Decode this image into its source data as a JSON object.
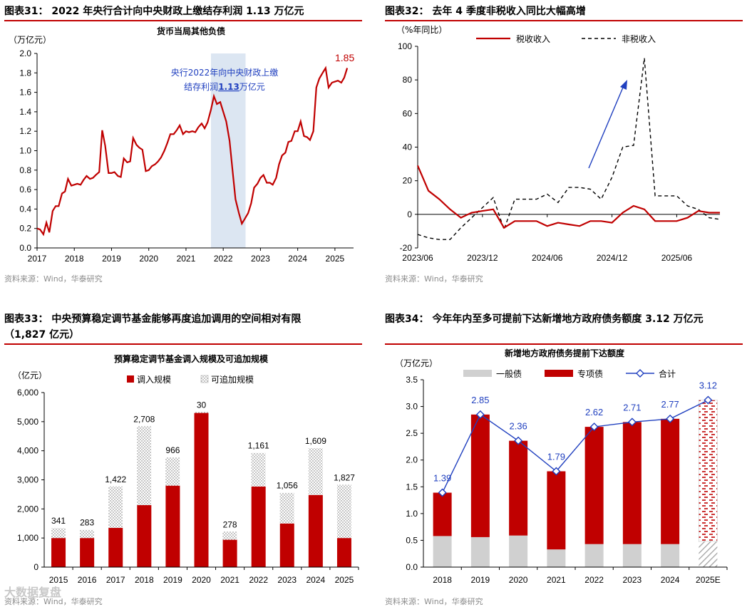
{
  "fig31": {
    "title": "图表31：  2022 年央行合计向中央财政上缴结存利润 1.13 万亿元",
    "source": "资料来源：Wind，华泰研究",
    "chart_data": {
      "type": "line",
      "title": "货币当局其他负债",
      "ylabel": "（万亿元）",
      "ylim": [
        0,
        2.0
      ],
      "yticks": [
        "0.0",
        "0.2",
        "0.4",
        "0.6",
        "0.8",
        "1.0",
        "1.2",
        "1.4",
        "1.6",
        "1.8",
        "2.0"
      ],
      "xticks": [
        "2017",
        "2018",
        "2019",
        "2020",
        "2021",
        "2022",
        "2023",
        "2024",
        "2025"
      ],
      "x_start": 2017.0,
      "x_end": 2025.5,
      "end_label": "1.85",
      "annotation_line1": "央行2022年向中央财政上缴",
      "annotation_line2_pre": "结存利润",
      "annotation_value": "1.13",
      "annotation_line2_post": "万亿元",
      "shade": [
        2021.67,
        2022.6
      ],
      "color": "#c00000",
      "shade_color": "#dce6f2",
      "annot_color": "#1f3fbf",
      "series": [
        [
          2017.0,
          0.2
        ],
        [
          2017.08,
          0.19
        ],
        [
          2017.17,
          0.14
        ],
        [
          2017.25,
          0.26
        ],
        [
          2017.33,
          0.16
        ],
        [
          2017.42,
          0.38
        ],
        [
          2017.5,
          0.43
        ],
        [
          2017.58,
          0.43
        ],
        [
          2017.67,
          0.56
        ],
        [
          2017.75,
          0.58
        ],
        [
          2017.83,
          0.71
        ],
        [
          2017.92,
          0.64
        ],
        [
          2018.0,
          0.65
        ],
        [
          2018.08,
          0.66
        ],
        [
          2018.17,
          0.65
        ],
        [
          2018.25,
          0.7
        ],
        [
          2018.33,
          0.74
        ],
        [
          2018.42,
          0.71
        ],
        [
          2018.5,
          0.72
        ],
        [
          2018.58,
          0.75
        ],
        [
          2018.67,
          0.78
        ],
        [
          2018.75,
          1.21
        ],
        [
          2018.83,
          1.05
        ],
        [
          2018.92,
          0.77
        ],
        [
          2019.0,
          0.77
        ],
        [
          2019.08,
          0.78
        ],
        [
          2019.17,
          0.74
        ],
        [
          2019.25,
          0.73
        ],
        [
          2019.33,
          0.92
        ],
        [
          2019.42,
          0.88
        ],
        [
          2019.5,
          0.89
        ],
        [
          2019.58,
          1.13
        ],
        [
          2019.67,
          1.06
        ],
        [
          2019.75,
          1.03
        ],
        [
          2019.83,
          1.01
        ],
        [
          2019.92,
          0.79
        ],
        [
          2020.0,
          0.8
        ],
        [
          2020.08,
          0.84
        ],
        [
          2020.17,
          0.86
        ],
        [
          2020.25,
          0.89
        ],
        [
          2020.33,
          0.93
        ],
        [
          2020.42,
          1.0
        ],
        [
          2020.5,
          1.08
        ],
        [
          2020.58,
          1.17
        ],
        [
          2020.67,
          1.17
        ],
        [
          2020.75,
          1.21
        ],
        [
          2020.83,
          1.26
        ],
        [
          2020.92,
          1.17
        ],
        [
          2021.0,
          1.2
        ],
        [
          2021.08,
          1.19
        ],
        [
          2021.17,
          1.2
        ],
        [
          2021.25,
          1.19
        ],
        [
          2021.33,
          1.24
        ],
        [
          2021.42,
          1.28
        ],
        [
          2021.5,
          1.23
        ],
        [
          2021.58,
          1.29
        ],
        [
          2021.67,
          1.42
        ],
        [
          2021.75,
          1.56
        ],
        [
          2021.83,
          1.48
        ],
        [
          2021.92,
          1.5
        ],
        [
          2022.0,
          1.4
        ],
        [
          2022.08,
          1.3
        ],
        [
          2022.17,
          1.1
        ],
        [
          2022.25,
          0.8
        ],
        [
          2022.33,
          0.5
        ],
        [
          2022.42,
          0.36
        ],
        [
          2022.5,
          0.25
        ],
        [
          2022.58,
          0.3
        ],
        [
          2022.67,
          0.36
        ],
        [
          2022.75,
          0.46
        ],
        [
          2022.83,
          0.62
        ],
        [
          2022.92,
          0.66
        ],
        [
          2023.0,
          0.72
        ],
        [
          2023.08,
          0.75
        ],
        [
          2023.17,
          0.67
        ],
        [
          2023.25,
          0.67
        ],
        [
          2023.33,
          0.65
        ],
        [
          2023.42,
          0.72
        ],
        [
          2023.5,
          0.86
        ],
        [
          2023.58,
          0.95
        ],
        [
          2023.67,
          0.98
        ],
        [
          2023.75,
          1.09
        ],
        [
          2023.83,
          1.1
        ],
        [
          2023.92,
          1.2
        ],
        [
          2024.0,
          1.2
        ],
        [
          2024.08,
          1.3
        ],
        [
          2024.17,
          1.15
        ],
        [
          2024.25,
          1.14
        ],
        [
          2024.33,
          1.11
        ],
        [
          2024.42,
          1.2
        ],
        [
          2024.5,
          1.65
        ],
        [
          2024.58,
          1.74
        ],
        [
          2024.67,
          1.8
        ],
        [
          2024.75,
          1.85
        ],
        [
          2024.83,
          1.65
        ],
        [
          2024.92,
          1.7
        ],
        [
          2025.0,
          1.71
        ],
        [
          2025.08,
          1.72
        ],
        [
          2025.17,
          1.7
        ],
        [
          2025.25,
          1.75
        ],
        [
          2025.33,
          1.85
        ]
      ]
    }
  },
  "fig32": {
    "title": "图表32：  去年 4 季度非税收入同比大幅高增",
    "source": "资料来源：Wind，华泰研究",
    "chart_data": {
      "type": "line",
      "ylabel": "（%年同比）",
      "ylim": [
        -20,
        100
      ],
      "yticks": [
        "-20",
        "0",
        "20",
        "40",
        "60",
        "80",
        "100"
      ],
      "xticks": [
        "2023/06",
        "2023/12",
        "2024/06",
        "2024/12",
        "2025/06"
      ],
      "xtick_index": [
        0,
        6,
        12,
        18,
        24
      ],
      "legend": [
        "税收收入",
        "非税收入"
      ],
      "colors": [
        "#c00000",
        "#000000"
      ],
      "arrow_color": "#1f3fbf",
      "series": [
        {
          "name": "税收收入",
          "values": [
            29,
            14,
            9,
            3,
            -2,
            1,
            2,
            3,
            -8,
            -4,
            -4,
            -4,
            -7,
            -5,
            -6,
            -7,
            -4,
            -4,
            -5,
            1,
            5,
            3,
            -4,
            -4,
            -4,
            -2,
            2,
            1,
            1
          ]
        },
        {
          "name": "非税收入",
          "values": [
            -12,
            -14,
            -15,
            -15,
            -8,
            -2,
            4,
            10,
            -9,
            9,
            9,
            9,
            12,
            7,
            16,
            16,
            15,
            9,
            22,
            40,
            41,
            93,
            11,
            11,
            11,
            5,
            3,
            -2,
            -3
          ]
        }
      ]
    }
  },
  "fig33": {
    "title": "图表33：  中央预算稳定调节基金能够再度追加调用的空间相对有限",
    "title_cont": "（1,827 亿元）",
    "source": "资料来源：Wind，华泰研究",
    "chart_data": {
      "type": "bar",
      "title": "预算稳定调节基金调入规模及可追加规模",
      "ylabel": "（亿元）",
      "ylim": [
        0,
        6000
      ],
      "yticks": [
        "0",
        "1,000",
        "2,000",
        "3,000",
        "4,000",
        "5,000",
        "6,000"
      ],
      "categories": [
        "2015",
        "2016",
        "2017",
        "2018",
        "2019",
        "2020",
        "2021",
        "2022",
        "2023",
        "2024",
        "2025"
      ],
      "legend": [
        "调入规模",
        "可追加规模"
      ],
      "color": "#c00000",
      "series": [
        {
          "name": "调入规模",
          "values": [
            1000,
            1000,
            1350,
            2130,
            2800,
            5300,
            940,
            2770,
            1500,
            2480,
            1000
          ]
        },
        {
          "name": "可追加规模",
          "values": [
            341,
            283,
            1422,
            2708,
            966,
            30,
            278,
            1161,
            1056,
            1609,
            1827
          ]
        }
      ],
      "labels": [
        "341",
        "283",
        "1,422",
        "2,708",
        "966",
        "30",
        "278",
        "1,161",
        "1,056",
        "1,609",
        "1,827"
      ]
    }
  },
  "fig34": {
    "title": "图表34：  今年年内至多可提前下达新增地方政府债务额度 3.12 万亿元",
    "source": "资料来源：Wind，华泰研究",
    "watermark": "大数据复盘",
    "chart_data": {
      "type": "bar",
      "title": "新增地方政府债务提前下达额度",
      "ylabel": "（万亿元）",
      "ylim": [
        0,
        3.5
      ],
      "yticks": [
        "0.0",
        "0.5",
        "1.0",
        "1.5",
        "2.0",
        "2.5",
        "3.0",
        "3.5"
      ],
      "categories": [
        "2018",
        "2019",
        "2020",
        "2021",
        "2022",
        "2023",
        "2024",
        "2025E"
      ],
      "legend": [
        "一般债",
        "专项债",
        "合计"
      ],
      "colors": [
        "#d0d0d0",
        "#c00000",
        "#1f3fbf"
      ],
      "series": [
        {
          "name": "一般债",
          "values": [
            0.58,
            0.56,
            0.59,
            0.33,
            0.43,
            0.43,
            0.43,
            0.48
          ]
        },
        {
          "name": "专项债",
          "values": [
            0.81,
            2.29,
            1.77,
            1.46,
            2.19,
            2.28,
            2.34,
            2.64
          ]
        },
        {
          "name": "合计",
          "values": [
            1.39,
            2.85,
            2.36,
            1.79,
            2.62,
            2.71,
            2.77,
            3.12
          ]
        }
      ],
      "labels": [
        "1.39",
        "2.85",
        "2.36",
        "1.79",
        "2.62",
        "2.71",
        "2.77",
        "3.12"
      ]
    }
  }
}
